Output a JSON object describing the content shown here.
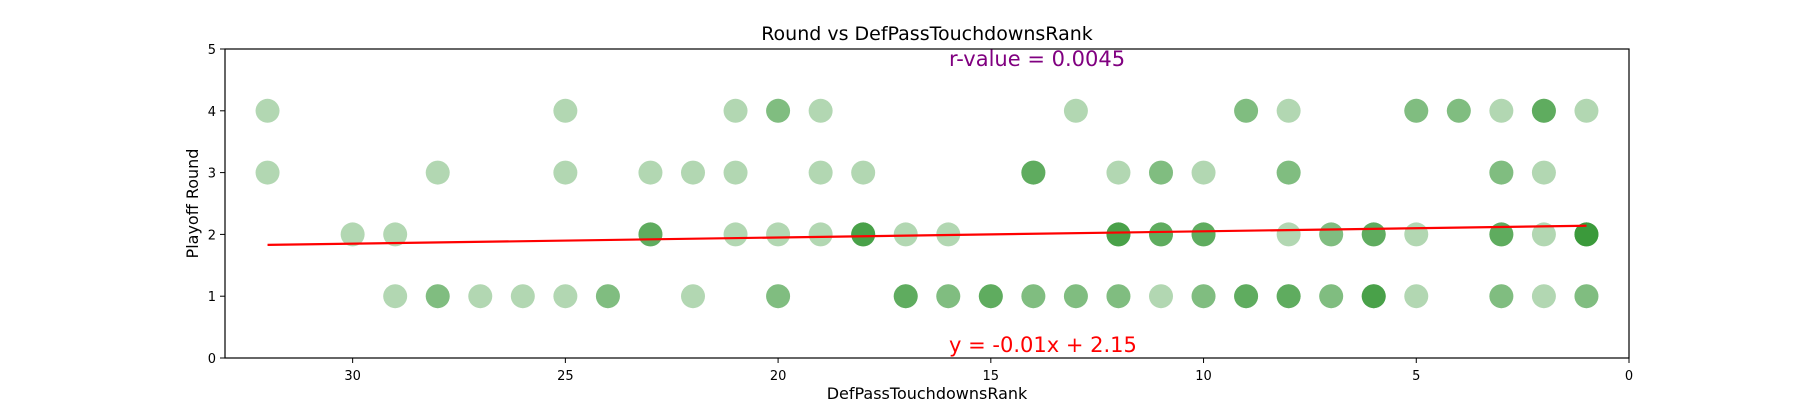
{
  "chart_data": {
    "type": "scatter",
    "title": "Round vs DefPassTouchdownsRank",
    "xlabel": "DefPassTouchdownsRank",
    "ylabel": "Playoff Round",
    "xlim": [
      33,
      0
    ],
    "ylim": [
      0,
      5
    ],
    "x_ticks": [
      30,
      25,
      20,
      15,
      10,
      5,
      0
    ],
    "y_ticks": [
      0,
      1,
      2,
      3,
      4,
      5
    ],
    "x_inverted": true,
    "grid": false,
    "point_color": "#228B22",
    "point_alpha": 0.35,
    "fit_line": {
      "slope": -0.01,
      "intercept": 2.15,
      "color": "#ff0000"
    },
    "annotations": {
      "r_value": {
        "text": "r-value = 0.0045",
        "color": "#800080"
      },
      "equation": {
        "text": "y = -0.01x + 2.15",
        "color": "#ff0000"
      }
    },
    "points": [
      [
        32,
        4
      ],
      [
        25,
        4
      ],
      [
        21,
        4
      ],
      [
        20,
        4
      ],
      [
        20,
        4
      ],
      [
        19,
        4
      ],
      [
        13,
        4
      ],
      [
        9,
        4
      ],
      [
        9,
        4
      ],
      [
        8,
        4
      ],
      [
        5,
        4
      ],
      [
        5,
        4
      ],
      [
        4,
        4
      ],
      [
        4,
        4
      ],
      [
        3,
        4
      ],
      [
        2,
        4
      ],
      [
        2,
        4
      ],
      [
        2,
        4
      ],
      [
        1,
        4
      ],
      [
        32,
        3
      ],
      [
        28,
        3
      ],
      [
        25,
        3
      ],
      [
        23,
        3
      ],
      [
        22,
        3
      ],
      [
        21,
        3
      ],
      [
        19,
        3
      ],
      [
        18,
        3
      ],
      [
        14,
        3
      ],
      [
        14,
        3
      ],
      [
        14,
        3
      ],
      [
        12,
        3
      ],
      [
        11,
        3
      ],
      [
        11,
        3
      ],
      [
        10,
        3
      ],
      [
        8,
        3
      ],
      [
        8,
        3
      ],
      [
        3,
        3
      ],
      [
        3,
        3
      ],
      [
        2,
        3
      ],
      [
        30,
        2
      ],
      [
        29,
        2
      ],
      [
        23,
        2
      ],
      [
        23,
        2
      ],
      [
        23,
        2
      ],
      [
        21,
        2
      ],
      [
        20,
        2
      ],
      [
        19,
        2
      ],
      [
        18,
        2
      ],
      [
        18,
        2
      ],
      [
        18,
        2
      ],
      [
        18,
        2
      ],
      [
        17,
        2
      ],
      [
        16,
        2
      ],
      [
        12,
        2
      ],
      [
        12,
        2
      ],
      [
        12,
        2
      ],
      [
        12,
        2
      ],
      [
        11,
        2
      ],
      [
        11,
        2
      ],
      [
        11,
        2
      ],
      [
        10,
        2
      ],
      [
        10,
        2
      ],
      [
        10,
        2
      ],
      [
        8,
        2
      ],
      [
        7,
        2
      ],
      [
        7,
        2
      ],
      [
        6,
        2
      ],
      [
        6,
        2
      ],
      [
        6,
        2
      ],
      [
        5,
        2
      ],
      [
        3,
        2
      ],
      [
        3,
        2
      ],
      [
        3,
        2
      ],
      [
        2,
        2
      ],
      [
        1,
        2
      ],
      [
        1,
        2
      ],
      [
        1,
        2
      ],
      [
        1,
        2
      ],
      [
        1,
        2
      ],
      [
        29,
        1
      ],
      [
        28,
        1
      ],
      [
        28,
        1
      ],
      [
        27,
        1
      ],
      [
        26,
        1
      ],
      [
        25,
        1
      ],
      [
        24,
        1
      ],
      [
        24,
        1
      ],
      [
        22,
        1
      ],
      [
        20,
        1
      ],
      [
        20,
        1
      ],
      [
        17,
        1
      ],
      [
        17,
        1
      ],
      [
        17,
        1
      ],
      [
        16,
        1
      ],
      [
        16,
        1
      ],
      [
        15,
        1
      ],
      [
        15,
        1
      ],
      [
        15,
        1
      ],
      [
        14,
        1
      ],
      [
        14,
        1
      ],
      [
        13,
        1
      ],
      [
        13,
        1
      ],
      [
        12,
        1
      ],
      [
        12,
        1
      ],
      [
        11,
        1
      ],
      [
        10,
        1
      ],
      [
        10,
        1
      ],
      [
        9,
        1
      ],
      [
        9,
        1
      ],
      [
        9,
        1
      ],
      [
        8,
        1
      ],
      [
        8,
        1
      ],
      [
        8,
        1
      ],
      [
        7,
        1
      ],
      [
        7,
        1
      ],
      [
        6,
        1
      ],
      [
        6,
        1
      ],
      [
        6,
        1
      ],
      [
        6,
        1
      ],
      [
        5,
        1
      ],
      [
        3,
        1
      ],
      [
        3,
        1
      ],
      [
        2,
        1
      ],
      [
        1,
        1
      ],
      [
        1,
        1
      ]
    ]
  }
}
